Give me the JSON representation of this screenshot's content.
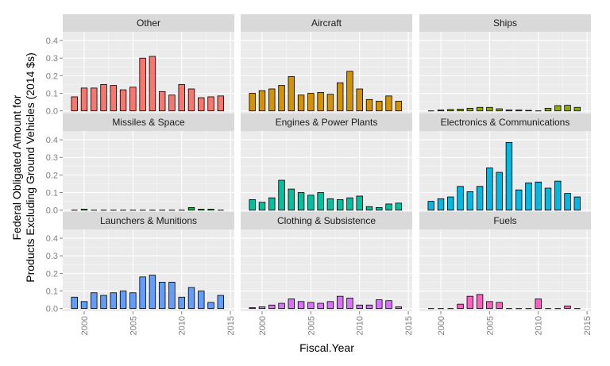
{
  "chart_data": {
    "type": "bar",
    "facet_layout": "3x3 grid, shared axes",
    "xlabel": "Fiscal.Year",
    "ylabel_lines": [
      "Federal Obligated Amount for",
      "Products Excluding Ground Vehicles (2014 $s)"
    ],
    "x": [
      1999,
      2000,
      2001,
      2002,
      2003,
      2004,
      2005,
      2006,
      2007,
      2008,
      2009,
      2010,
      2011,
      2012,
      2013,
      2014
    ],
    "xlim": [
      1997.8,
      2015.4
    ],
    "x_ticks": [
      2000,
      2005,
      2010,
      2015
    ],
    "x_tick_labels": [
      "2000",
      "2005",
      "2010",
      "2015"
    ],
    "ylim": [
      -0.015,
      0.45
    ],
    "y_ticks": [
      0.0,
      0.1,
      0.2,
      0.3,
      0.4
    ],
    "y_tick_labels": [
      "0.0",
      "0.1",
      "0.2",
      "0.3",
      "0.4"
    ],
    "grid": true,
    "legend": "none",
    "panels": [
      {
        "title": "Other",
        "color": "#F8766D",
        "values": [
          0.08,
          0.13,
          0.13,
          0.15,
          0.145,
          0.12,
          0.135,
          0.3,
          0.31,
          0.11,
          0.09,
          0.15,
          0.125,
          0.075,
          0.08,
          0.085
        ]
      },
      {
        "title": "Aircraft",
        "color": "#D39200",
        "values": [
          0.1,
          0.115,
          0.125,
          0.145,
          0.195,
          0.09,
          0.1,
          0.105,
          0.095,
          0.16,
          0.225,
          0.125,
          0.065,
          0.055,
          0.085,
          0.055
        ]
      },
      {
        "title": "Ships",
        "color": "#93AA00",
        "values": [
          0.0,
          0.005,
          0.008,
          0.01,
          0.015,
          0.02,
          0.02,
          0.012,
          0.005,
          0.005,
          0.003,
          0.0,
          0.015,
          0.03,
          0.032,
          0.02
        ]
      },
      {
        "title": "Missiles & Space",
        "color": "#00BA38",
        "values": [
          0.0,
          0.005,
          0.0,
          0.0,
          0.0,
          0.0,
          0.0,
          0.0,
          0.0,
          0.0,
          0.0,
          0.0,
          0.015,
          0.005,
          0.005,
          0.0
        ]
      },
      {
        "title": "Engines & Power Plants",
        "color": "#00C19F",
        "values": [
          0.06,
          0.045,
          0.07,
          0.17,
          0.12,
          0.1,
          0.085,
          0.1,
          0.065,
          0.06,
          0.07,
          0.08,
          0.02,
          0.015,
          0.035,
          0.04
        ]
      },
      {
        "title": "Electronics & Communications",
        "color": "#00B9E3",
        "values": [
          0.05,
          0.065,
          0.075,
          0.135,
          0.105,
          0.135,
          0.24,
          0.215,
          0.385,
          0.115,
          0.155,
          0.16,
          0.125,
          0.165,
          0.095,
          0.075
        ]
      },
      {
        "title": "Launchers & Munitions",
        "color": "#619CFF",
        "values": [
          0.065,
          0.04,
          0.09,
          0.075,
          0.09,
          0.1,
          0.09,
          0.18,
          0.19,
          0.15,
          0.15,
          0.065,
          0.12,
          0.1,
          0.035,
          0.075
        ]
      },
      {
        "title": "Clothing & Subsistence",
        "color": "#DB72FB",
        "values": [
          0.005,
          0.01,
          0.02,
          0.03,
          0.055,
          0.04,
          0.035,
          0.03,
          0.04,
          0.07,
          0.06,
          0.02,
          0.02,
          0.05,
          0.045,
          0.01
        ]
      },
      {
        "title": "Fuels",
        "color": "#FF61C3",
        "values": [
          0.0,
          0.0,
          0.0,
          0.025,
          0.07,
          0.08,
          0.04,
          0.035,
          0.0,
          0.0,
          0.0,
          0.055,
          0.0,
          0.0,
          0.015,
          0.0
        ]
      }
    ]
  }
}
